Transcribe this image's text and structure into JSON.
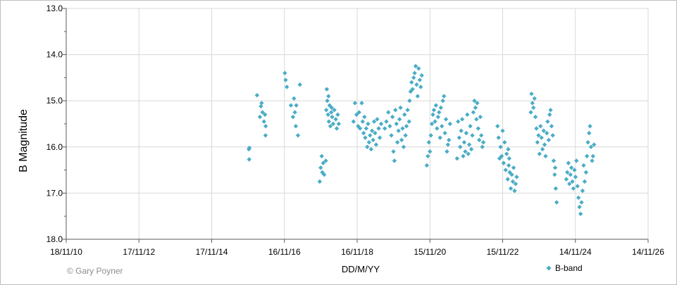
{
  "chart_data": {
    "type": "scatter",
    "xlabel": "DD/M/YY",
    "ylabel": "B Magnitude",
    "ylim": [
      13.0,
      18.0
    ],
    "y_inverted": true,
    "y_ticks": [
      "13.0",
      "14.0",
      "15.0",
      "16.0",
      "17.0",
      "18.0"
    ],
    "x_ticks": [
      "18/11/10",
      "17/11/12",
      "17/11/14",
      "16/11/16",
      "16/11/18",
      "15/11/20",
      "15/11/22",
      "14/11/24",
      "14/11/26"
    ],
    "x_tick_dates": [
      "2010-11-18",
      "2012-11-17",
      "2014-11-17",
      "2016-11-16",
      "2018-11-16",
      "2020-11-15",
      "2022-11-15",
      "2024-11-14",
      "2026-11-14"
    ],
    "grid": true,
    "legend_position": "bottom-right",
    "marker_color": "#4bacc6",
    "credit": "© Gary Poyner",
    "series": [
      {
        "name": "B-band",
        "points": [
          [
            "2015-11-25",
            16.05
          ],
          [
            "2015-11-28",
            16.27
          ],
          [
            "2015-11-30",
            16.02
          ],
          [
            "2016-02-15",
            14.88
          ],
          [
            "2016-03-15",
            15.35
          ],
          [
            "2016-03-25",
            15.12
          ],
          [
            "2016-04-10",
            15.25
          ],
          [
            "2016-04-25",
            15.45
          ],
          [
            "2016-05-05",
            15.3
          ],
          [
            "2016-05-10",
            15.75
          ],
          [
            "2016-05-12",
            15.55
          ],
          [
            "2016-04-01",
            15.05
          ],
          [
            "2016-11-20",
            14.4
          ],
          [
            "2016-11-28",
            14.55
          ],
          [
            "2016-12-10",
            14.7
          ],
          [
            "2017-01-20",
            15.1
          ],
          [
            "2017-02-10",
            15.35
          ],
          [
            "2017-03-01",
            15.25
          ],
          [
            "2017-03-10",
            15.55
          ],
          [
            "2017-03-15",
            15.1
          ],
          [
            "2017-04-01",
            15.75
          ],
          [
            "2017-04-20",
            14.65
          ],
          [
            "2017-02-20",
            14.95
          ],
          [
            "2017-11-05",
            16.75
          ],
          [
            "2017-11-15",
            16.45
          ],
          [
            "2017-11-25",
            16.2
          ],
          [
            "2017-12-10",
            16.35
          ],
          [
            "2017-12-20",
            16.6
          ],
          [
            "2018-01-05",
            16.3
          ],
          [
            "2017-12-01",
            16.55
          ],
          [
            "2018-01-10",
            15.2
          ],
          [
            "2018-01-15",
            14.75
          ],
          [
            "2018-01-20",
            15.0
          ],
          [
            "2018-01-28",
            15.3
          ],
          [
            "2018-02-05",
            15.45
          ],
          [
            "2018-02-12",
            15.1
          ],
          [
            "2018-02-20",
            15.55
          ],
          [
            "2018-03-01",
            15.25
          ],
          [
            "2018-03-10",
            15.35
          ],
          [
            "2018-03-20",
            15.5
          ],
          [
            "2018-04-01",
            15.2
          ],
          [
            "2018-04-15",
            15.4
          ],
          [
            "2018-04-25",
            15.6
          ],
          [
            "2018-05-05",
            15.3
          ],
          [
            "2018-05-15",
            15.5
          ],
          [
            "2018-02-01",
            14.9
          ],
          [
            "2018-03-05",
            15.15
          ],
          [
            "2018-10-10",
            15.45
          ],
          [
            "2018-10-25",
            15.05
          ],
          [
            "2018-11-10",
            15.3
          ],
          [
            "2018-11-25",
            15.55
          ],
          [
            "2018-12-05",
            15.25
          ],
          [
            "2018-12-15",
            15.6
          ],
          [
            "2019-01-01",
            15.05
          ],
          [
            "2019-01-10",
            15.45
          ],
          [
            "2019-01-20",
            15.7
          ],
          [
            "2019-01-28",
            15.35
          ],
          [
            "2019-02-05",
            15.8
          ],
          [
            "2019-02-15",
            15.6
          ],
          [
            "2019-02-25",
            16.0
          ],
          [
            "2019-03-05",
            15.5
          ],
          [
            "2019-03-15",
            15.9
          ],
          [
            "2019-03-25",
            15.75
          ],
          [
            "2019-04-05",
            16.05
          ],
          [
            "2019-04-15",
            15.65
          ],
          [
            "2019-04-25",
            15.85
          ],
          [
            "2019-05-05",
            15.45
          ],
          [
            "2019-05-15",
            15.7
          ],
          [
            "2019-05-25",
            15.95
          ],
          [
            "2019-06-05",
            15.4
          ],
          [
            "2019-06-20",
            15.6
          ],
          [
            "2019-07-01",
            15.8
          ],
          [
            "2019-07-15",
            15.5
          ],
          [
            "2019-08-20",
            15.6
          ],
          [
            "2019-09-05",
            15.45
          ],
          [
            "2019-09-25",
            15.25
          ],
          [
            "2019-10-10",
            15.55
          ],
          [
            "2019-10-25",
            15.75
          ],
          [
            "2019-11-05",
            15.35
          ],
          [
            "2019-11-15",
            16.1
          ],
          [
            "2019-11-25",
            16.3
          ],
          [
            "2019-12-05",
            15.2
          ],
          [
            "2019-12-15",
            15.5
          ],
          [
            "2019-12-25",
            15.9
          ],
          [
            "2020-01-05",
            15.65
          ],
          [
            "2020-01-15",
            15.4
          ],
          [
            "2020-01-25",
            15.15
          ],
          [
            "2020-02-05",
            15.85
          ],
          [
            "2020-02-15",
            15.6
          ],
          [
            "2020-02-25",
            16.0
          ],
          [
            "2020-03-05",
            15.3
          ],
          [
            "2020-03-15",
            15.75
          ],
          [
            "2020-03-25",
            15.55
          ],
          [
            "2020-04-05",
            15.2
          ],
          [
            "2020-04-20",
            15.45
          ],
          [
            "2020-04-25",
            15.0
          ],
          [
            "2020-05-05",
            14.8
          ],
          [
            "2020-05-15",
            14.6
          ],
          [
            "2020-05-25",
            14.75
          ],
          [
            "2020-06-05",
            14.5
          ],
          [
            "2020-06-15",
            14.4
          ],
          [
            "2020-06-25",
            14.25
          ],
          [
            "2020-07-05",
            14.65
          ],
          [
            "2020-07-15",
            14.9
          ],
          [
            "2020-07-25",
            14.3
          ],
          [
            "2020-08-05",
            14.55
          ],
          [
            "2020-08-15",
            14.7
          ],
          [
            "2020-08-25",
            14.45
          ],
          [
            "2020-10-15",
            16.4
          ],
          [
            "2020-10-25",
            16.2
          ],
          [
            "2020-11-05",
            15.9
          ],
          [
            "2020-11-15",
            16.1
          ],
          [
            "2020-11-25",
            15.75
          ],
          [
            "2020-12-05",
            15.5
          ],
          [
            "2020-12-15",
            15.3
          ],
          [
            "2020-12-25",
            15.2
          ],
          [
            "2021-01-05",
            15.45
          ],
          [
            "2021-01-15",
            15.1
          ],
          [
            "2021-01-25",
            15.6
          ],
          [
            "2021-02-05",
            15.35
          ],
          [
            "2021-02-15",
            15.25
          ],
          [
            "2021-02-25",
            15.8
          ],
          [
            "2021-03-05",
            15.15
          ],
          [
            "2021-03-15",
            15.55
          ],
          [
            "2021-03-25",
            15.0
          ],
          [
            "2021-04-05",
            14.9
          ],
          [
            "2021-04-15",
            15.7
          ],
          [
            "2021-04-25",
            15.4
          ],
          [
            "2021-05-05",
            16.1
          ],
          [
            "2021-05-15",
            15.95
          ],
          [
            "2021-05-25",
            15.85
          ],
          [
            "2021-06-05",
            15.5
          ],
          [
            "2021-08-15",
            16.25
          ],
          [
            "2021-08-25",
            15.45
          ],
          [
            "2021-09-05",
            15.8
          ],
          [
            "2021-09-15",
            16.0
          ],
          [
            "2021-09-25",
            15.65
          ],
          [
            "2021-10-05",
            15.4
          ],
          [
            "2021-10-15",
            16.2
          ],
          [
            "2021-10-25",
            15.9
          ],
          [
            "2021-11-05",
            16.1
          ],
          [
            "2021-11-15",
            15.7
          ],
          [
            "2021-11-25",
            15.3
          ],
          [
            "2021-12-05",
            16.15
          ],
          [
            "2021-12-15",
            15.95
          ],
          [
            "2021-12-25",
            15.55
          ],
          [
            "2022-01-05",
            16.05
          ],
          [
            "2022-01-15",
            15.75
          ],
          [
            "2022-01-25",
            15.25
          ],
          [
            "2022-02-05",
            15.0
          ],
          [
            "2022-02-15",
            15.15
          ],
          [
            "2022-02-25",
            15.4
          ],
          [
            "2022-03-05",
            15.05
          ],
          [
            "2022-03-15",
            15.6
          ],
          [
            "2022-03-25",
            15.85
          ],
          [
            "2022-04-05",
            15.35
          ],
          [
            "2022-04-15",
            15.75
          ],
          [
            "2022-04-25",
            16.0
          ],
          [
            "2022-05-05",
            15.9
          ],
          [
            "2022-09-25",
            15.55
          ],
          [
            "2022-10-05",
            15.8
          ],
          [
            "2022-10-15",
            16.25
          ],
          [
            "2022-10-25",
            16.0
          ],
          [
            "2022-11-05",
            16.2
          ],
          [
            "2022-11-15",
            15.65
          ],
          [
            "2022-11-25",
            16.35
          ],
          [
            "2022-12-05",
            15.9
          ],
          [
            "2022-12-15",
            16.5
          ],
          [
            "2022-12-25",
            16.15
          ],
          [
            "2023-01-05",
            16.7
          ],
          [
            "2023-01-15",
            16.4
          ],
          [
            "2023-01-25",
            16.55
          ],
          [
            "2023-02-05",
            16.9
          ],
          [
            "2023-02-15",
            16.6
          ],
          [
            "2023-02-25",
            16.75
          ],
          [
            "2023-03-05",
            16.45
          ],
          [
            "2023-03-15",
            16.95
          ],
          [
            "2023-03-25",
            16.8
          ],
          [
            "2023-04-05",
            16.65
          ],
          [
            "2023-01-10",
            16.05
          ],
          [
            "2023-01-20",
            16.25
          ],
          [
            "2023-08-25",
            15.25
          ],
          [
            "2023-09-01",
            14.85
          ],
          [
            "2023-09-10",
            15.05
          ],
          [
            "2023-09-20",
            15.15
          ],
          [
            "2023-10-01",
            14.95
          ],
          [
            "2023-10-10",
            15.35
          ],
          [
            "2023-10-20",
            15.6
          ],
          [
            "2023-10-30",
            15.9
          ],
          [
            "2023-11-10",
            15.75
          ],
          [
            "2023-11-20",
            16.15
          ],
          [
            "2023-11-30",
            15.55
          ],
          [
            "2023-12-10",
            15.8
          ],
          [
            "2023-12-20",
            16.05
          ],
          [
            "2024-01-01",
            15.65
          ],
          [
            "2024-01-10",
            15.95
          ],
          [
            "2024-01-20",
            16.2
          ],
          [
            "2024-02-01",
            15.7
          ],
          [
            "2024-02-10",
            15.45
          ],
          [
            "2024-02-20",
            15.85
          ],
          [
            "2024-03-01",
            15.3
          ],
          [
            "2024-03-10",
            15.2
          ],
          [
            "2024-03-20",
            15.55
          ],
          [
            "2024-04-01",
            15.75
          ],
          [
            "2024-04-10",
            16.3
          ],
          [
            "2024-04-20",
            16.6
          ],
          [
            "2024-05-01",
            16.9
          ],
          [
            "2024-05-10",
            17.2
          ],
          [
            "2024-04-25",
            16.45
          ],
          [
            "2024-08-15",
            16.7
          ],
          [
            "2024-08-25",
            16.55
          ],
          [
            "2024-09-05",
            16.35
          ],
          [
            "2024-09-15",
            16.8
          ],
          [
            "2024-09-25",
            16.6
          ],
          [
            "2024-10-05",
            16.45
          ],
          [
            "2024-10-15",
            16.75
          ],
          [
            "2024-10-25",
            16.9
          ],
          [
            "2024-11-05",
            16.5
          ],
          [
            "2024-11-15",
            16.65
          ],
          [
            "2024-11-25",
            16.3
          ],
          [
            "2024-12-05",
            16.85
          ],
          [
            "2024-12-15",
            17.1
          ],
          [
            "2024-12-25",
            17.3
          ],
          [
            "2025-01-05",
            17.45
          ],
          [
            "2025-01-15",
            17.2
          ],
          [
            "2025-01-25",
            16.95
          ],
          [
            "2025-02-05",
            16.4
          ],
          [
            "2025-02-15",
            16.75
          ],
          [
            "2025-03-01",
            16.55
          ],
          [
            "2025-03-10",
            16.2
          ],
          [
            "2025-03-20",
            15.9
          ],
          [
            "2025-04-01",
            15.7
          ],
          [
            "2025-04-10",
            15.55
          ],
          [
            "2025-04-20",
            16.0
          ],
          [
            "2025-05-01",
            16.3
          ],
          [
            "2025-05-10",
            16.2
          ],
          [
            "2025-05-20",
            15.95
          ]
        ]
      }
    ]
  }
}
